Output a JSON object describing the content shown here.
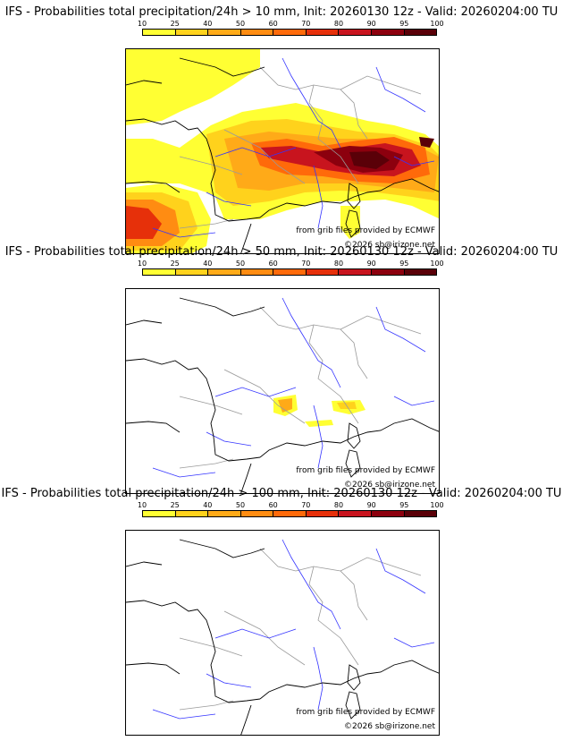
{
  "colors": {
    "scale": [
      "#ffff33",
      "#ffd21c",
      "#ffaa18",
      "#ff8c12",
      "#ff6a0a",
      "#e6300a",
      "#c8141e",
      "#8c000e",
      "#5a0008"
    ],
    "coast": "#000000",
    "border": "#9a9a9a",
    "river": "#3333ff"
  },
  "legend": {
    "ticks": [
      "10",
      "25",
      "40",
      "50",
      "60",
      "70",
      "80",
      "90",
      "95",
      "100"
    ]
  },
  "panels": [
    {
      "title": "IFS - Probabilities total precipitation/24h > 10 mm, Init: 20260130 12z - Valid: 20260204:00 TU",
      "source": "from grib files provided by ECMWF",
      "copyright": "©2026 sb@irizone.net"
    },
    {
      "title": "IFS - Probabilities total precipitation/24h > 50 mm, Init: 20260130 12z - Valid: 20260204:00 TU",
      "source": "from grib files provided by ECMWF",
      "copyright": "©2026 sb@irizone.net"
    },
    {
      "title": "IFS - Probabilities total precipitation/24h > 100 mm, Init: 20260130 12z - Valid: 20260204:00 TU",
      "source": "from grib files provided by ECMWF",
      "copyright": "©2026 sb@irizone.net"
    }
  ]
}
